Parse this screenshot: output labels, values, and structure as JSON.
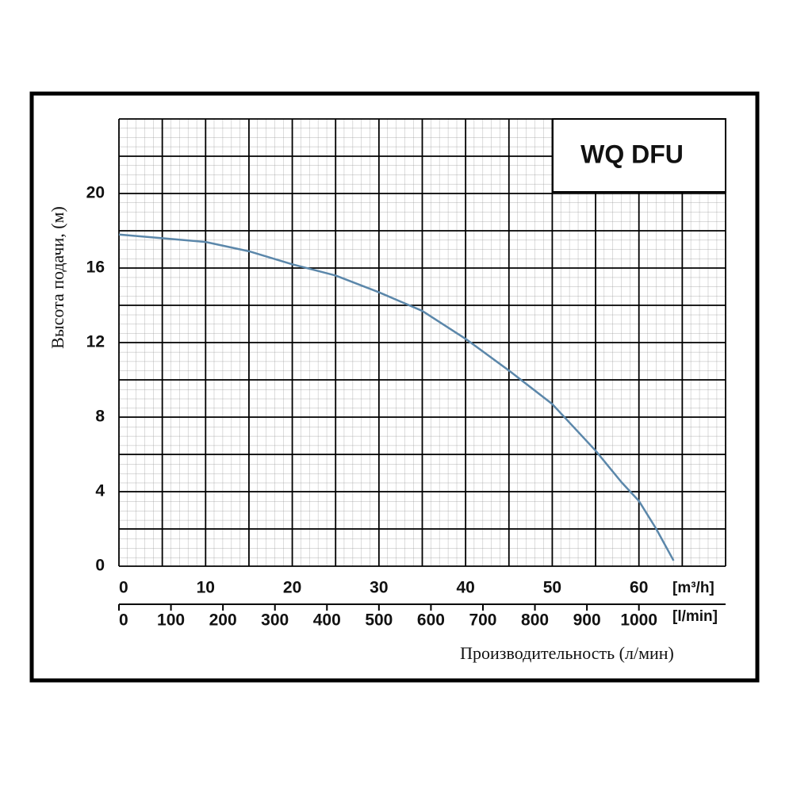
{
  "chart_data": {
    "type": "line",
    "title": "WQ DFU",
    "y_label": "Высота подачи, (м)",
    "x_label": "Производительность (л/мин)",
    "x_unit": "[m³/h]",
    "x2_unit": "[l/min]",
    "xlim": [
      0,
      70
    ],
    "xticks": [
      0,
      10,
      20,
      30,
      40,
      50,
      60
    ],
    "xgrid": [
      0,
      5,
      10,
      15,
      20,
      25,
      30,
      35,
      40,
      45,
      50,
      55,
      60,
      65,
      70
    ],
    "x2lim": [
      0,
      1166.7
    ],
    "x2ticks": [
      0,
      100,
      200,
      300,
      400,
      500,
      600,
      700,
      800,
      900,
      1000
    ],
    "ylim": [
      0,
      24
    ],
    "yticks": [
      0,
      4,
      8,
      12,
      16,
      20
    ],
    "ygrid": [
      0,
      2,
      4,
      6,
      8,
      10,
      12,
      14,
      16,
      18,
      20,
      22,
      24
    ],
    "series": [
      {
        "color": "#5b87aa",
        "x": [
          0,
          5,
          10,
          15,
          20,
          25,
          30,
          35,
          40,
          45,
          50,
          55,
          58,
          60,
          62,
          64
        ],
        "values": [
          17.8,
          17.6,
          17.4,
          16.9,
          16.2,
          15.6,
          14.7,
          13.7,
          12.2,
          10.5,
          8.7,
          6.2,
          4.5,
          3.5,
          2.0,
          0.3
        ]
      }
    ]
  }
}
